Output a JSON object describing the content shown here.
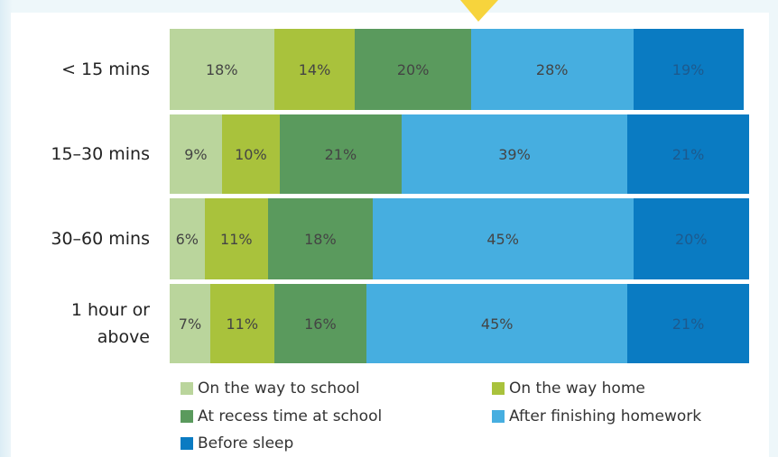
{
  "chart_data": {
    "type": "stacked_bar_horizontal",
    "categories": [
      "< 15 mins",
      "15–30 mins",
      "30–60 mins",
      "1 hour or above"
    ],
    "xlim": [
      0,
      100
    ],
    "series": [
      {
        "name": "On the way to school",
        "color": "#bad59c",
        "values": [
          18,
          9,
          6,
          7
        ],
        "value_labels": [
          "18%",
          "9%",
          "6%",
          "7%"
        ]
      },
      {
        "name": "On the way home",
        "color": "#a9c23c",
        "values": [
          14,
          10,
          11,
          11
        ],
        "value_labels": [
          "14%",
          "10%",
          "11%",
          "11%"
        ]
      },
      {
        "name": "At recess time at school",
        "color": "#5a9a5d",
        "values": [
          20,
          21,
          18,
          16
        ],
        "value_labels": [
          "20%",
          "21%",
          "18%",
          "16%"
        ]
      },
      {
        "name": "After finishing homework",
        "color": "#46aee0",
        "values": [
          28,
          39,
          45,
          45
        ],
        "value_labels": [
          "28%",
          "39%",
          "45%",
          "45%"
        ]
      },
      {
        "name": "Before sleep",
        "color": "#0a7bc2",
        "values": [
          19,
          21,
          20,
          21
        ],
        "value_labels": [
          "19%",
          "21%",
          "20%",
          "21%"
        ]
      }
    ]
  }
}
